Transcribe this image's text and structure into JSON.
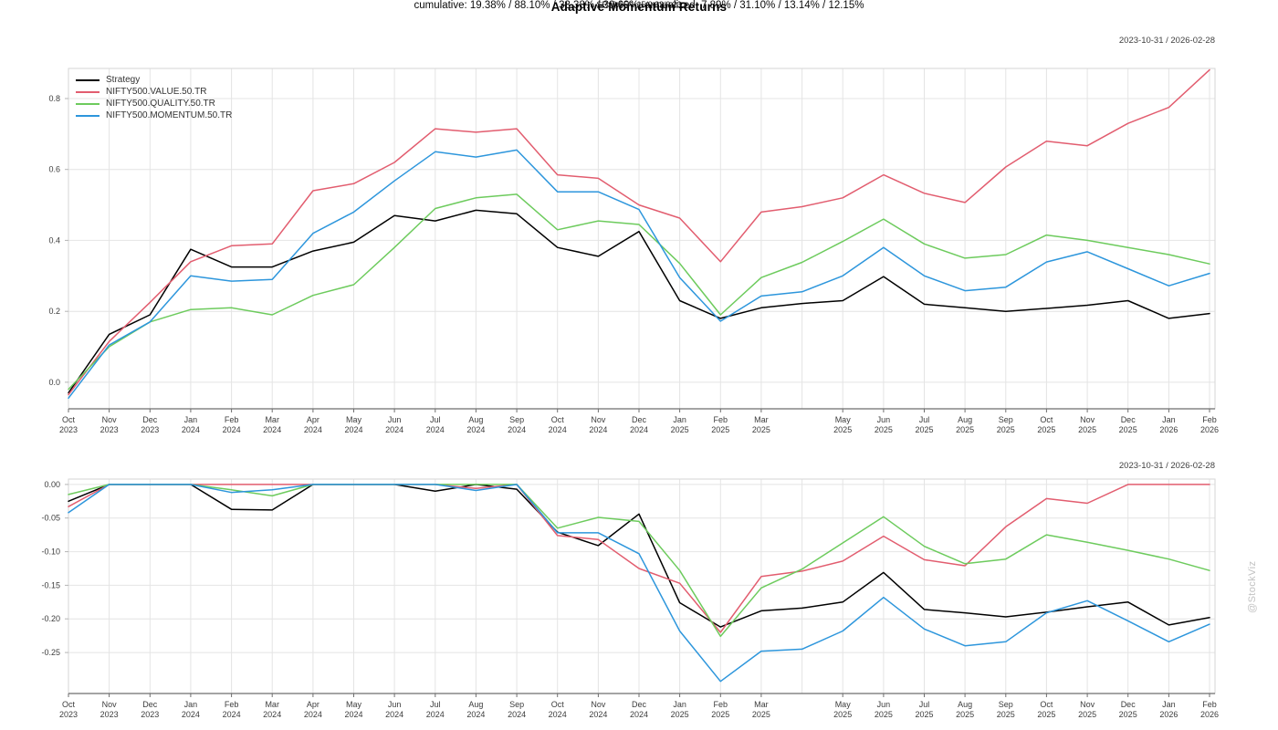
{
  "header": {
    "title": "Adaptive Momentum Returns",
    "subtitle": "SR: 0.05/1.15/0.32/0.23",
    "stats_line": "cumulative: 19.38% / 88.10% / 33.38% / 30.69%; annualized: 7.89% / 31.10% / 13.14% / 12.15%"
  },
  "watermark": "@StockViz",
  "colors": {
    "strategy": "#000000",
    "value": "#e25d6f",
    "quality": "#6dcb5d",
    "momentum": "#2d96dc",
    "gridline": "#e4e4e4",
    "plot_border": "#d6d6d6",
    "axis_line": "#6e6e6e",
    "axis_text": "#3c3c3c"
  },
  "chart_data": [
    {
      "type": "line",
      "panel": "cumulative-returns",
      "date_range_label": "2023-10-31 / 2026-02-28",
      "grid": true,
      "legend_position": "top-left",
      "show_legend": true,
      "ylim": [
        -0.075,
        0.885
      ],
      "yticks": [
        0.0,
        0.2,
        0.4,
        0.6,
        0.8
      ],
      "ytick_labels": [
        "0.0",
        "0.2",
        "0.4",
        "0.6",
        "0.8"
      ],
      "categories": [
        "Oct 2023",
        "Nov 2023",
        "Dec 2023",
        "Jan 2024",
        "Feb 2024",
        "Mar 2024",
        "Apr 2024",
        "May 2024",
        "Jun 2024",
        "Jul 2024",
        "Aug 2024",
        "Sep 2024",
        "Oct 2024",
        "Nov 2024",
        "Dec 2024",
        "Jan 2025",
        "Feb 2025",
        "Mar 2025",
        "Apr 2025",
        "May 2025",
        "Jun 2025",
        "Jul 2025",
        "Aug 2025",
        "Sep 2025",
        "Oct 2025",
        "Nov 2025",
        "Dec 2025",
        "Jan 2026",
        "Feb 2026"
      ],
      "hidden_ticks": [
        "Apr 2025"
      ],
      "series": [
        {
          "name": "Strategy",
          "color": "#000000",
          "values": [
            -0.03,
            0.135,
            0.19,
            0.375,
            0.325,
            0.325,
            0.37,
            0.395,
            0.47,
            0.455,
            0.485,
            0.475,
            0.38,
            0.355,
            0.425,
            0.23,
            0.18,
            0.21,
            0.222,
            0.23,
            0.298,
            0.22,
            0.21,
            0.2,
            0.208,
            0.217,
            0.23,
            0.18,
            0.1938
          ]
        },
        {
          "name": "NIFTY500.VALUE.50.TR",
          "color": "#e25d6f",
          "values": [
            -0.035,
            0.115,
            0.225,
            0.34,
            0.385,
            0.39,
            0.54,
            0.56,
            0.62,
            0.715,
            0.705,
            0.715,
            0.585,
            0.575,
            0.5,
            0.463,
            0.34,
            0.48,
            0.495,
            0.52,
            0.585,
            0.533,
            0.507,
            0.607,
            0.68,
            0.667,
            0.73,
            0.775,
            0.881
          ]
        },
        {
          "name": "NIFTY500.QUALITY.50.TR",
          "color": "#6dcb5d",
          "values": [
            -0.02,
            0.1,
            0.17,
            0.205,
            0.21,
            0.19,
            0.245,
            0.275,
            0.38,
            0.49,
            0.52,
            0.53,
            0.43,
            0.455,
            0.445,
            0.335,
            0.19,
            0.295,
            0.338,
            0.397,
            0.46,
            0.39,
            0.35,
            0.36,
            0.415,
            0.4,
            0.38,
            0.36,
            0.3338
          ]
        },
        {
          "name": "NIFTY500.MOMENTUM.50.TR",
          "color": "#2d96dc",
          "values": [
            -0.045,
            0.105,
            0.17,
            0.3,
            0.285,
            0.29,
            0.42,
            0.48,
            0.568,
            0.65,
            0.635,
            0.655,
            0.537,
            0.537,
            0.487,
            0.295,
            0.172,
            0.243,
            0.255,
            0.3,
            0.38,
            0.3,
            0.258,
            0.268,
            0.339,
            0.368,
            0.32,
            0.272,
            0.3069
          ]
        }
      ]
    },
    {
      "type": "line",
      "panel": "drawdowns",
      "date_range_label": "2023-10-31 / 2026-02-28",
      "grid": true,
      "show_legend": false,
      "ylim": [
        -0.311,
        0.008
      ],
      "yticks": [
        0.0,
        -0.05,
        -0.1,
        -0.15,
        -0.2,
        -0.25
      ],
      "ytick_labels": [
        "0.00",
        "-0.05",
        "-0.10",
        "-0.15",
        "-0.20",
        "-0.25"
      ],
      "categories": [
        "Oct 2023",
        "Nov 2023",
        "Dec 2023",
        "Jan 2024",
        "Feb 2024",
        "Mar 2024",
        "Apr 2024",
        "May 2024",
        "Jun 2024",
        "Jul 2024",
        "Aug 2024",
        "Sep 2024",
        "Oct 2024",
        "Nov 2024",
        "Dec 2024",
        "Jan 2025",
        "Feb 2025",
        "Mar 2025",
        "Apr 2025",
        "May 2025",
        "Jun 2025",
        "Jul 2025",
        "Aug 2025",
        "Sep 2025",
        "Oct 2025",
        "Nov 2025",
        "Dec 2025",
        "Jan 2026",
        "Feb 2026"
      ],
      "hidden_ticks": [
        "Apr 2025"
      ],
      "series": [
        {
          "name": "Strategy",
          "color": "#000000",
          "values": [
            -0.025,
            0.0,
            0.0,
            0.0,
            -0.037,
            -0.038,
            0.0,
            0.0,
            0.0,
            -0.01,
            0.0,
            -0.007,
            -0.071,
            -0.091,
            -0.044,
            -0.176,
            -0.212,
            -0.188,
            -0.184,
            -0.175,
            -0.131,
            -0.186,
            -0.191,
            -0.197,
            -0.19,
            -0.182,
            -0.175,
            -0.209,
            -0.198
          ]
        },
        {
          "name": "NIFTY500.VALUE.50.TR",
          "color": "#e25d6f",
          "values": [
            -0.033,
            0.0,
            0.0,
            0.0,
            0.0,
            0.0,
            0.0,
            0.0,
            0.0,
            0.0,
            -0.006,
            0.0,
            -0.076,
            -0.082,
            -0.125,
            -0.147,
            -0.22,
            -0.137,
            -0.129,
            -0.114,
            -0.077,
            -0.112,
            -0.121,
            -0.063,
            -0.021,
            -0.028,
            0.0,
            0.0,
            0.0
          ]
        },
        {
          "name": "NIFTY500.QUALITY.50.TR",
          "color": "#6dcb5d",
          "values": [
            -0.015,
            0.0,
            0.0,
            0.0,
            -0.008,
            -0.017,
            0.0,
            0.0,
            0.0,
            0.0,
            0.0,
            0.0,
            -0.065,
            -0.049,
            -0.055,
            -0.128,
            -0.226,
            -0.154,
            -0.126,
            -0.087,
            -0.048,
            -0.092,
            -0.118,
            -0.111,
            -0.075,
            -0.086,
            -0.098,
            -0.111,
            -0.128
          ]
        },
        {
          "name": "NIFTY500.MOMENTUM.50.TR",
          "color": "#2d96dc",
          "values": [
            -0.042,
            0.0,
            0.0,
            0.0,
            -0.012,
            -0.008,
            0.0,
            0.0,
            0.0,
            0.0,
            -0.009,
            0.0,
            -0.072,
            -0.072,
            -0.103,
            -0.218,
            -0.293,
            -0.248,
            -0.245,
            -0.218,
            -0.168,
            -0.215,
            -0.24,
            -0.234,
            -0.191,
            -0.173,
            -0.203,
            -0.234,
            -0.208
          ]
        }
      ]
    }
  ]
}
